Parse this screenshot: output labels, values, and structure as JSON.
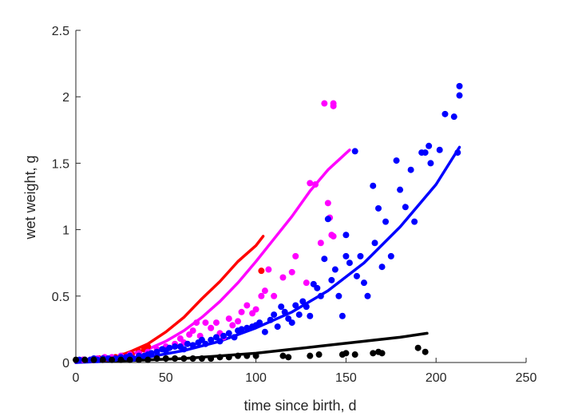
{
  "chart_data": {
    "type": "scatter",
    "xlabel": "time since birth, d",
    "ylabel": "wet weight, g",
    "xlim": [
      0,
      250
    ],
    "ylim": [
      0,
      2.5
    ],
    "xticks": [
      0,
      50,
      100,
      150,
      200,
      250
    ],
    "yticks": [
      0,
      0.5,
      1,
      1.5,
      2,
      2.5
    ],
    "xtick_labels": [
      "0",
      "50",
      "100",
      "150",
      "200",
      "250"
    ],
    "ytick_labels": [
      "0",
      "0.5",
      "1",
      "1.5",
      "2",
      "2.5"
    ],
    "grid": false,
    "legend": false,
    "series": [
      {
        "color": "#ff0000",
        "points": [
          [
            4,
            0.02
          ],
          [
            9,
            0.02
          ],
          [
            13,
            0.03
          ],
          [
            17,
            0.03
          ],
          [
            22,
            0.04
          ],
          [
            26,
            0.05
          ],
          [
            31,
            0.06
          ],
          [
            35,
            0.08
          ],
          [
            38,
            0.1
          ],
          [
            40,
            0.12
          ],
          [
            103,
            0.69
          ]
        ],
        "curve": [
          [
            0,
            0
          ],
          [
            10,
            0.01
          ],
          [
            20,
            0.03
          ],
          [
            30,
            0.08
          ],
          [
            40,
            0.14
          ],
          [
            50,
            0.23
          ],
          [
            60,
            0.34
          ],
          [
            70,
            0.48
          ],
          [
            80,
            0.61
          ],
          [
            90,
            0.76
          ],
          [
            100,
            0.88
          ],
          [
            104,
            0.95
          ]
        ]
      },
      {
        "color": "#ff00ff",
        "points": [
          [
            4,
            0.02
          ],
          [
            8,
            0.02
          ],
          [
            12,
            0.03
          ],
          [
            16,
            0.04
          ],
          [
            20,
            0.04
          ],
          [
            25,
            0.05
          ],
          [
            30,
            0.06
          ],
          [
            35,
            0.07
          ],
          [
            40,
            0.08
          ],
          [
            45,
            0.1
          ],
          [
            50,
            0.12
          ],
          [
            55,
            0.14
          ],
          [
            58,
            0.18
          ],
          [
            60,
            0.15
          ],
          [
            63,
            0.21
          ],
          [
            65,
            0.24
          ],
          [
            67,
            0.3
          ],
          [
            69,
            0.2
          ],
          [
            72,
            0.3
          ],
          [
            75,
            0.26
          ],
          [
            78,
            0.3
          ],
          [
            80,
            0.22
          ],
          [
            82,
            0.19
          ],
          [
            85,
            0.33
          ],
          [
            87,
            0.28
          ],
          [
            90,
            0.31
          ],
          [
            92,
            0.38
          ],
          [
            95,
            0.43
          ],
          [
            98,
            0.37
          ],
          [
            100,
            0.4
          ],
          [
            103,
            0.5
          ],
          [
            105,
            0.54
          ],
          [
            107,
            0.7
          ],
          [
            110,
            0.5
          ],
          [
            115,
            0.64
          ],
          [
            120,
            0.68
          ],
          [
            122,
            0.8
          ],
          [
            128,
            0.6
          ],
          [
            130,
            1.35
          ],
          [
            133,
            1.34
          ],
          [
            136,
            0.9
          ],
          [
            140,
            1.2
          ],
          [
            141,
            1.09
          ],
          [
            142,
            0.96
          ],
          [
            143,
            0.95
          ],
          [
            138,
            1.95
          ],
          [
            143,
            1.93
          ],
          [
            143,
            1.95
          ]
        ],
        "curve": [
          [
            0,
            0
          ],
          [
            10,
            0.01
          ],
          [
            20,
            0.03
          ],
          [
            30,
            0.06
          ],
          [
            40,
            0.1
          ],
          [
            50,
            0.16
          ],
          [
            60,
            0.24
          ],
          [
            70,
            0.34
          ],
          [
            80,
            0.46
          ],
          [
            90,
            0.6
          ],
          [
            100,
            0.76
          ],
          [
            110,
            0.93
          ],
          [
            120,
            1.1
          ],
          [
            130,
            1.29
          ],
          [
            140,
            1.45
          ],
          [
            152,
            1.6
          ]
        ]
      },
      {
        "color": "#0000ff",
        "points": [
          [
            2,
            0.02
          ],
          [
            5,
            0.02
          ],
          [
            8,
            0.02
          ],
          [
            10,
            0.03
          ],
          [
            12,
            0.02
          ],
          [
            15,
            0.03
          ],
          [
            18,
            0.03
          ],
          [
            20,
            0.02
          ],
          [
            22,
            0.03
          ],
          [
            25,
            0.04
          ],
          [
            28,
            0.04
          ],
          [
            30,
            0.05
          ],
          [
            32,
            0.03
          ],
          [
            35,
            0.05
          ],
          [
            38,
            0.05
          ],
          [
            40,
            0.06
          ],
          [
            42,
            0.07
          ],
          [
            45,
            0.08
          ],
          [
            48,
            0.1
          ],
          [
            50,
            0.09
          ],
          [
            52,
            0.11
          ],
          [
            55,
            0.12
          ],
          [
            58,
            0.12
          ],
          [
            60,
            0.1
          ],
          [
            62,
            0.14
          ],
          [
            65,
            0.13
          ],
          [
            68,
            0.15
          ],
          [
            70,
            0.17
          ],
          [
            72,
            0.14
          ],
          [
            75,
            0.17
          ],
          [
            78,
            0.19
          ],
          [
            80,
            0.16
          ],
          [
            82,
            0.2
          ],
          [
            85,
            0.22
          ],
          [
            88,
            0.19
          ],
          [
            90,
            0.24
          ],
          [
            92,
            0.25
          ],
          [
            95,
            0.26
          ],
          [
            98,
            0.27
          ],
          [
            100,
            0.28
          ],
          [
            102,
            0.3
          ],
          [
            105,
            0.23
          ],
          [
            108,
            0.32
          ],
          [
            110,
            0.36
          ],
          [
            112,
            0.27
          ],
          [
            114,
            0.42
          ],
          [
            116,
            0.38
          ],
          [
            118,
            0.33
          ],
          [
            120,
            0.3
          ],
          [
            122,
            0.43
          ],
          [
            124,
            0.36
          ],
          [
            126,
            0.46
          ],
          [
            128,
            0.42
          ],
          [
            130,
            0.35
          ],
          [
            132,
            0.59
          ],
          [
            134,
            0.56
          ],
          [
            136,
            0.5
          ],
          [
            138,
            0.78
          ],
          [
            140,
            1.08
          ],
          [
            142,
            0.62
          ],
          [
            144,
            0.7
          ],
          [
            146,
            0.5
          ],
          [
            148,
            0.35
          ],
          [
            150,
            0.8
          ],
          [
            150,
            0.96
          ],
          [
            152,
            0.75
          ],
          [
            155,
            1.59
          ],
          [
            156,
            0.65
          ],
          [
            158,
            0.8
          ],
          [
            160,
            0.6
          ],
          [
            162,
            0.5
          ],
          [
            165,
            1.33
          ],
          [
            166,
            0.9
          ],
          [
            168,
            1.16
          ],
          [
            170,
            0.72
          ],
          [
            172,
            1.06
          ],
          [
            175,
            0.8
          ],
          [
            178,
            1.52
          ],
          [
            180,
            1.3
          ],
          [
            183,
            1.17
          ],
          [
            186,
            1.45
          ],
          [
            188,
            1.06
          ],
          [
            192,
            1.58
          ],
          [
            194,
            1.58
          ],
          [
            196,
            1.63
          ],
          [
            197,
            1.5
          ],
          [
            202,
            1.6
          ],
          [
            205,
            1.87
          ],
          [
            210,
            1.85
          ],
          [
            212,
            1.58
          ],
          [
            213,
            2.01
          ],
          [
            213,
            2.08
          ]
        ],
        "curve": [
          [
            0,
            0
          ],
          [
            20,
            0.01
          ],
          [
            40,
            0.04
          ],
          [
            60,
            0.09
          ],
          [
            80,
            0.16
          ],
          [
            100,
            0.26
          ],
          [
            120,
            0.38
          ],
          [
            140,
            0.54
          ],
          [
            160,
            0.75
          ],
          [
            180,
            1.02
          ],
          [
            200,
            1.34
          ],
          [
            213,
            1.62
          ]
        ]
      },
      {
        "color": "#000000",
        "points": [
          [
            0,
            0.02
          ],
          [
            5,
            0.02
          ],
          [
            10,
            0.02
          ],
          [
            15,
            0.02
          ],
          [
            20,
            0.02
          ],
          [
            25,
            0.02
          ],
          [
            30,
            0.02
          ],
          [
            35,
            0.02
          ],
          [
            40,
            0.02
          ],
          [
            45,
            0.03
          ],
          [
            50,
            0.03
          ],
          [
            55,
            0.03
          ],
          [
            60,
            0.03
          ],
          [
            65,
            0.03
          ],
          [
            70,
            0.03
          ],
          [
            75,
            0.03
          ],
          [
            80,
            0.04
          ],
          [
            85,
            0.04
          ],
          [
            90,
            0.05
          ],
          [
            95,
            0.05
          ],
          [
            100,
            0.05
          ],
          [
            115,
            0.05
          ],
          [
            118,
            0.04
          ],
          [
            130,
            0.05
          ],
          [
            135,
            0.06
          ],
          [
            148,
            0.06
          ],
          [
            150,
            0.07
          ],
          [
            155,
            0.06
          ],
          [
            165,
            0.07
          ],
          [
            168,
            0.08
          ],
          [
            170,
            0.07
          ],
          [
            190,
            0.11
          ],
          [
            194,
            0.08
          ]
        ],
        "curve": [
          [
            0,
            0.01
          ],
          [
            20,
            0.01
          ],
          [
            40,
            0.02
          ],
          [
            60,
            0.03
          ],
          [
            80,
            0.05
          ],
          [
            100,
            0.07
          ],
          [
            120,
            0.1
          ],
          [
            140,
            0.13
          ],
          [
            160,
            0.16
          ],
          [
            180,
            0.19
          ],
          [
            195,
            0.22
          ]
        ]
      }
    ]
  }
}
